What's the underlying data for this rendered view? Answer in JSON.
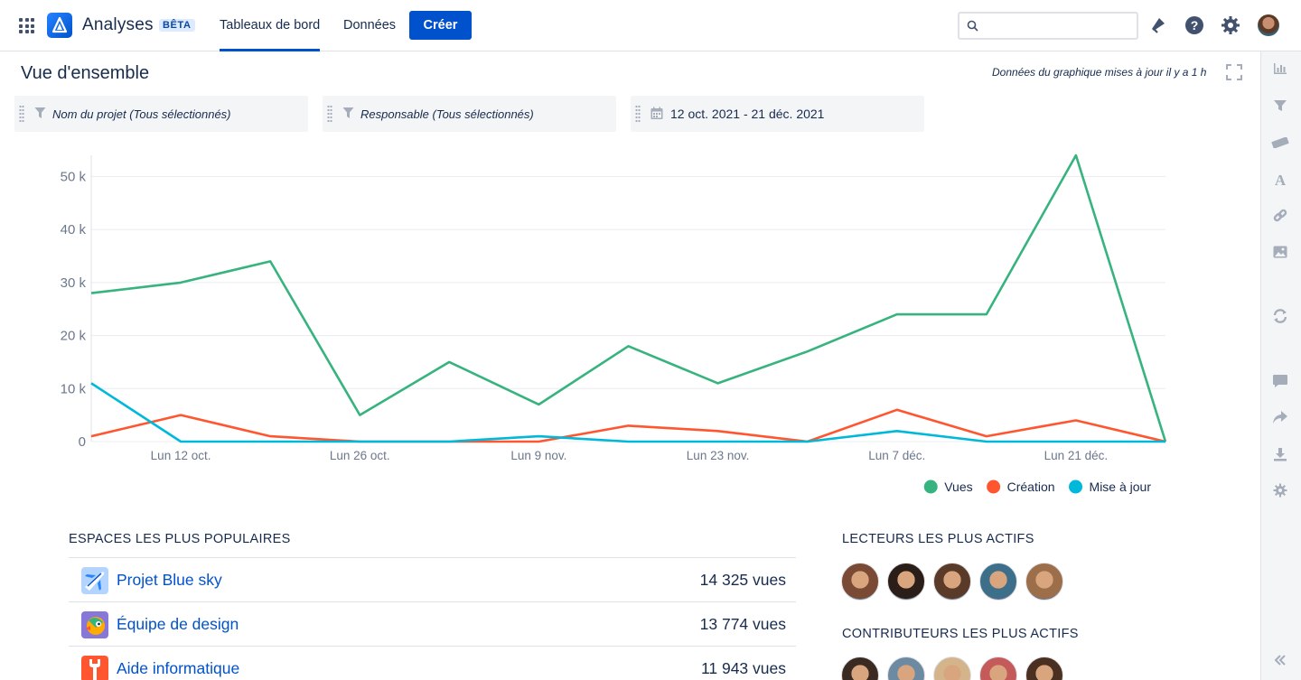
{
  "header": {
    "app_name": "Analyses",
    "beta_badge": "BÊTA",
    "tabs": [
      {
        "label": "Tableaux de bord",
        "active": true
      },
      {
        "label": "Données",
        "active": false
      }
    ],
    "create_label": "Créer",
    "search_placeholder": "",
    "icons": [
      "app-switcher-icon",
      "notifications-icon",
      "help-icon",
      "settings-icon",
      "profile-avatar"
    ]
  },
  "page": {
    "title": "Vue d'ensemble",
    "updated": "Données du graphique mises à jour il y a 1 h"
  },
  "filters": [
    {
      "label": "Nom du projet (Tous sélectionnés)",
      "icon": "funnel-icon"
    },
    {
      "label": "Responsable (Tous sélectionnés)",
      "icon": "funnel-icon"
    },
    {
      "label": "12 oct. 2021 - 21 déc. 2021",
      "icon": "calendar-icon"
    }
  ],
  "chart_data": {
    "type": "line",
    "title": "",
    "xlabel": "",
    "ylabel": "",
    "x": [
      "2021-10-05",
      "2021-10-12",
      "2021-10-19",
      "2021-10-26",
      "2021-11-02",
      "2021-11-09",
      "2021-11-16",
      "2021-11-23",
      "2021-11-30",
      "2021-12-07",
      "2021-12-14",
      "2021-12-21",
      "2021-12-28"
    ],
    "x_tick_labels": [
      {
        "x": "2021-10-12",
        "label": "Lun 12 oct."
      },
      {
        "x": "2021-10-26",
        "label": "Lun 26 oct."
      },
      {
        "x": "2021-11-09",
        "label": "Lun 9 nov."
      },
      {
        "x": "2021-11-23",
        "label": "Lun 23 nov."
      },
      {
        "x": "2021-12-07",
        "label": "Lun 7 déc."
      },
      {
        "x": "2021-12-21",
        "label": "Lun 21 déc."
      }
    ],
    "y_ticks": [
      {
        "value": 0,
        "label": "0"
      },
      {
        "value": 10000,
        "label": "10 k"
      },
      {
        "value": 20000,
        "label": "20 k"
      },
      {
        "value": 30000,
        "label": "30 k"
      },
      {
        "value": 40000,
        "label": "40 k"
      },
      {
        "value": 50000,
        "label": "50 k"
      }
    ],
    "ylim": [
      0,
      54000
    ],
    "grid": true,
    "legend_position": "bottom-right",
    "series": [
      {
        "name": "Vues",
        "color": "#36b37e",
        "values": [
          28000,
          30000,
          34000,
          5000,
          15000,
          7000,
          18000,
          11000,
          17000,
          24000,
          24000,
          54000,
          0
        ]
      },
      {
        "name": "Création",
        "color": "#ff5630",
        "values": [
          1000,
          5000,
          1000,
          0,
          0,
          0,
          3000,
          2000,
          0,
          6000,
          1000,
          4000,
          0
        ]
      },
      {
        "name": "Mise à jour",
        "color": "#00b8d9",
        "values": [
          11000,
          0,
          0,
          0,
          0,
          1000,
          0,
          0,
          0,
          2000,
          0,
          0,
          0
        ]
      }
    ]
  },
  "popular_spaces": {
    "title": "ESPACES LES PLUS POPULAIRES",
    "items": [
      {
        "name": "Projet Blue sky",
        "views": "14 325 vues",
        "icon": "airplane-icon"
      },
      {
        "name": "Équipe de design",
        "views": "13 774 vues",
        "icon": "parrot-icon"
      },
      {
        "name": "Aide informatique",
        "views": "11 943 vues",
        "icon": "wrench-icon"
      }
    ]
  },
  "top_readers": {
    "title": "LECTEURS LES PLUS ACTIFS",
    "avatars": [
      "#7a4a35",
      "#2b1d17",
      "#5a3a28",
      "#3e6f8a",
      "#9c6f4a"
    ]
  },
  "top_contributors": {
    "title": "CONTRIBUTEURS LES PLUS ACTIFS",
    "avatars": [
      "#3a2a22",
      "#6d8aa3",
      "#d4b48a",
      "#c45a5a",
      "#4a3020"
    ]
  },
  "right_rail": [
    "bar-chart-icon",
    "filter-icon",
    "ruler-icon",
    "text-icon",
    "link-icon",
    "image-icon",
    "refresh-icon",
    "comment-icon",
    "share-icon",
    "download-icon",
    "settings-icon",
    "collapse-icon"
  ]
}
